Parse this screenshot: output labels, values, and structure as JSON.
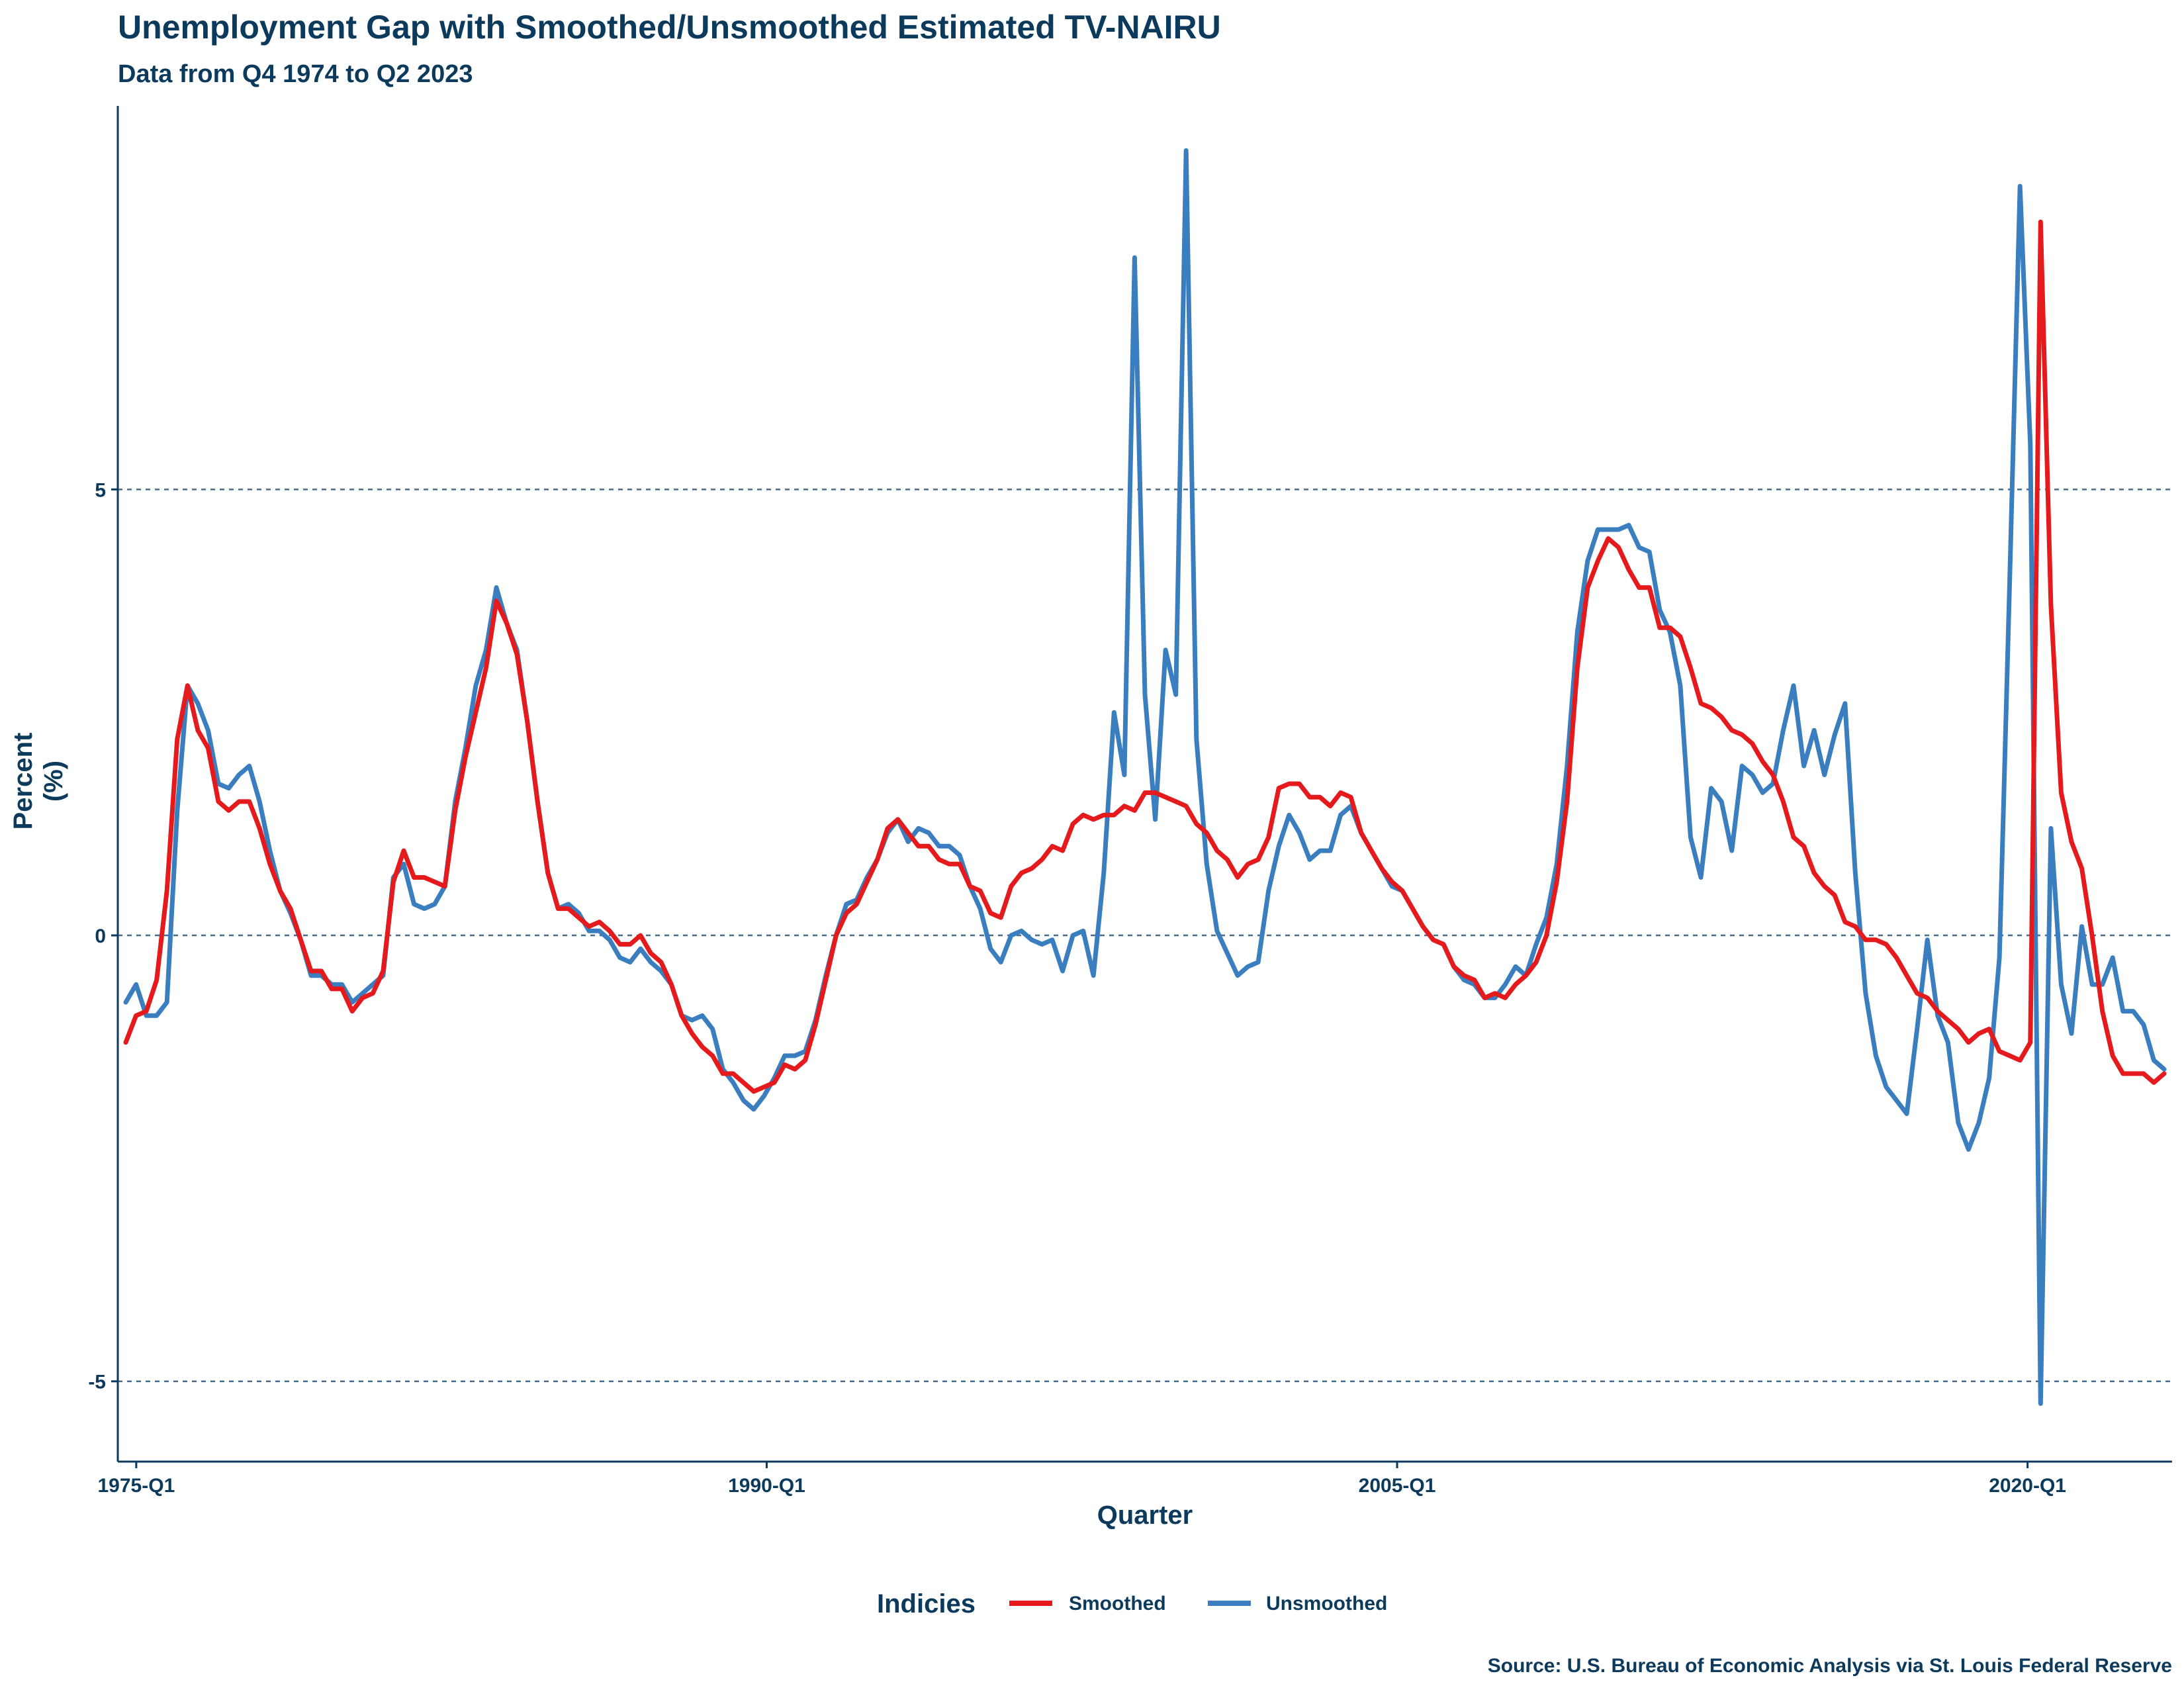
{
  "chart_data": {
    "type": "line",
    "title": "Unemployment Gap with Smoothed/Unsmoothed Estimated TV-NAIRU",
    "subtitle": "Data from Q4 1974 to Q2 2023",
    "xlabel": "Quarter",
    "ylabel_line1": "Percent",
    "ylabel_line2": "(%)",
    "legend_title": "Indicies",
    "legend_position": "bottom",
    "caption": "Source: U.S. Bureau of Economic Analysis via St. Louis Federal Reserve",
    "x_start": "1974-Q4",
    "x_end": "2023-Q2",
    "x_ticks": [
      {
        "label": "1975-Q1",
        "quarter": "1975-Q1"
      },
      {
        "label": "1990-Q1",
        "quarter": "1990-Q1"
      },
      {
        "label": "2005-Q1",
        "quarter": "2005-Q1"
      },
      {
        "label": "2020-Q1",
        "quarter": "2020-Q1"
      }
    ],
    "y_ticks": [
      5,
      0,
      -5
    ],
    "ylim": [
      -5.9,
      9.3
    ],
    "grid": "horizontal dashed at y ticks",
    "colors": {
      "text": "#0b3a5c",
      "axis": "#0b3a5c",
      "grid": "#4a6a88"
    },
    "series": [
      {
        "name": "Smoothed",
        "color": "#e41a1c",
        "values": [
          -1.2,
          -0.9,
          -0.85,
          -0.5,
          0.5,
          2.2,
          2.8,
          2.3,
          2.1,
          1.5,
          1.4,
          1.5,
          1.5,
          1.2,
          0.8,
          0.5,
          0.3,
          -0.05,
          -0.4,
          -0.4,
          -0.6,
          -0.6,
          -0.85,
          -0.7,
          -0.65,
          -0.4,
          0.6,
          0.95,
          0.65,
          0.65,
          0.6,
          0.55,
          1.4,
          2.0,
          2.5,
          3.0,
          3.75,
          3.5,
          3.15,
          2.4,
          1.5,
          0.7,
          0.3,
          0.3,
          0.2,
          0.1,
          0.15,
          0.05,
          -0.1,
          -0.1,
          0.0,
          -0.2,
          -0.3,
          -0.55,
          -0.9,
          -1.1,
          -1.25,
          -1.35,
          -1.55,
          -1.55,
          -1.65,
          -1.75,
          -1.7,
          -1.65,
          -1.45,
          -1.5,
          -1.4,
          -1.0,
          -0.5,
          0.0,
          0.25,
          0.35,
          0.6,
          0.85,
          1.2,
          1.3,
          1.15,
          1.0,
          1.0,
          0.85,
          0.8,
          0.8,
          0.55,
          0.5,
          0.25,
          0.2,
          0.55,
          0.7,
          0.75,
          0.85,
          1.0,
          0.95,
          1.25,
          1.35,
          1.3,
          1.35,
          1.35,
          1.45,
          1.4,
          1.6,
          1.6,
          1.55,
          1.5,
          1.45,
          1.25,
          1.15,
          0.95,
          0.85,
          0.65,
          0.8,
          0.85,
          1.1,
          1.65,
          1.7,
          1.7,
          1.55,
          1.55,
          1.45,
          1.6,
          1.55,
          1.15,
          0.95,
          0.75,
          0.6,
          0.5,
          0.3,
          0.1,
          -0.05,
          -0.1,
          -0.35,
          -0.45,
          -0.5,
          -0.7,
          -0.65,
          -0.7,
          -0.55,
          -0.45,
          -0.3,
          0.0,
          0.6,
          1.5,
          3.0,
          3.9,
          4.2,
          4.45,
          4.35,
          4.1,
          3.9,
          3.9,
          3.45,
          3.45,
          3.35,
          3.0,
          2.6,
          2.55,
          2.45,
          2.3,
          2.25,
          2.15,
          1.95,
          1.8,
          1.5,
          1.1,
          1.0,
          0.7,
          0.55,
          0.45,
          0.15,
          0.1,
          -0.05,
          -0.05,
          -0.1,
          -0.25,
          -0.45,
          -0.65,
          -0.7,
          -0.85,
          -0.95,
          -1.05,
          -1.2,
          -1.1,
          -1.05,
          -1.3,
          -1.35,
          -1.4,
          -1.2,
          8.0,
          3.7,
          1.6,
          1.05,
          0.75,
          0.0,
          -0.85,
          -1.35,
          -1.55,
          -1.55,
          -1.55,
          -1.65,
          -1.55
        ]
      },
      {
        "name": "Unsmoothed",
        "color": "#3a7ebf",
        "values": [
          -0.75,
          -0.55,
          -0.9,
          -0.9,
          -0.75,
          1.4,
          2.8,
          2.6,
          2.3,
          1.7,
          1.65,
          1.8,
          1.9,
          1.5,
          0.95,
          0.5,
          0.25,
          -0.05,
          -0.45,
          -0.45,
          -0.55,
          -0.55,
          -0.75,
          -0.65,
          -0.55,
          -0.45,
          0.65,
          0.8,
          0.35,
          0.3,
          0.35,
          0.55,
          1.5,
          2.1,
          2.8,
          3.2,
          3.9,
          3.5,
          3.2,
          2.4,
          1.5,
          0.7,
          0.3,
          0.35,
          0.25,
          0.05,
          0.05,
          -0.05,
          -0.25,
          -0.3,
          -0.15,
          -0.3,
          -0.4,
          -0.55,
          -0.9,
          -0.95,
          -0.9,
          -1.05,
          -1.5,
          -1.65,
          -1.85,
          -1.95,
          -1.8,
          -1.6,
          -1.35,
          -1.35,
          -1.3,
          -0.95,
          -0.45,
          0.0,
          0.35,
          0.4,
          0.65,
          0.85,
          1.15,
          1.3,
          1.05,
          1.2,
          1.15,
          1.0,
          1.0,
          0.9,
          0.55,
          0.3,
          -0.15,
          -0.3,
          0.0,
          0.05,
          -0.05,
          -0.1,
          -0.05,
          -0.4,
          0.0,
          0.05,
          -0.45,
          0.7,
          2.5,
          1.8,
          7.6,
          2.7,
          1.3,
          3.2,
          2.7,
          8.8,
          2.2,
          0.8,
          0.05,
          -0.2,
          -0.45,
          -0.35,
          -0.3,
          0.5,
          1.0,
          1.35,
          1.15,
          0.85,
          0.95,
          0.95,
          1.35,
          1.45,
          1.15,
          0.95,
          0.75,
          0.55,
          0.5,
          0.3,
          0.1,
          -0.05,
          -0.1,
          -0.35,
          -0.5,
          -0.55,
          -0.7,
          -0.7,
          -0.55,
          -0.35,
          -0.45,
          -0.1,
          0.2,
          0.8,
          1.9,
          3.4,
          4.2,
          4.55,
          4.55,
          4.55,
          4.6,
          4.35,
          4.3,
          3.65,
          3.4,
          2.8,
          1.1,
          0.65,
          1.65,
          1.5,
          0.95,
          1.9,
          1.8,
          1.6,
          1.7,
          2.3,
          2.8,
          1.9,
          2.3,
          1.8,
          2.25,
          2.6,
          0.7,
          -0.65,
          -1.35,
          -1.7,
          -1.85,
          -2.0,
          -1.05,
          -0.05,
          -0.9,
          -1.2,
          -2.1,
          -2.4,
          -2.1,
          -1.6,
          -0.25,
          4.0,
          8.4,
          5.5,
          -5.25,
          1.2,
          -0.55,
          -1.1,
          0.1,
          -0.55,
          -0.55,
          -0.25,
          -0.85,
          -0.85,
          -1.0,
          -1.4,
          -1.5
        ]
      }
    ]
  }
}
